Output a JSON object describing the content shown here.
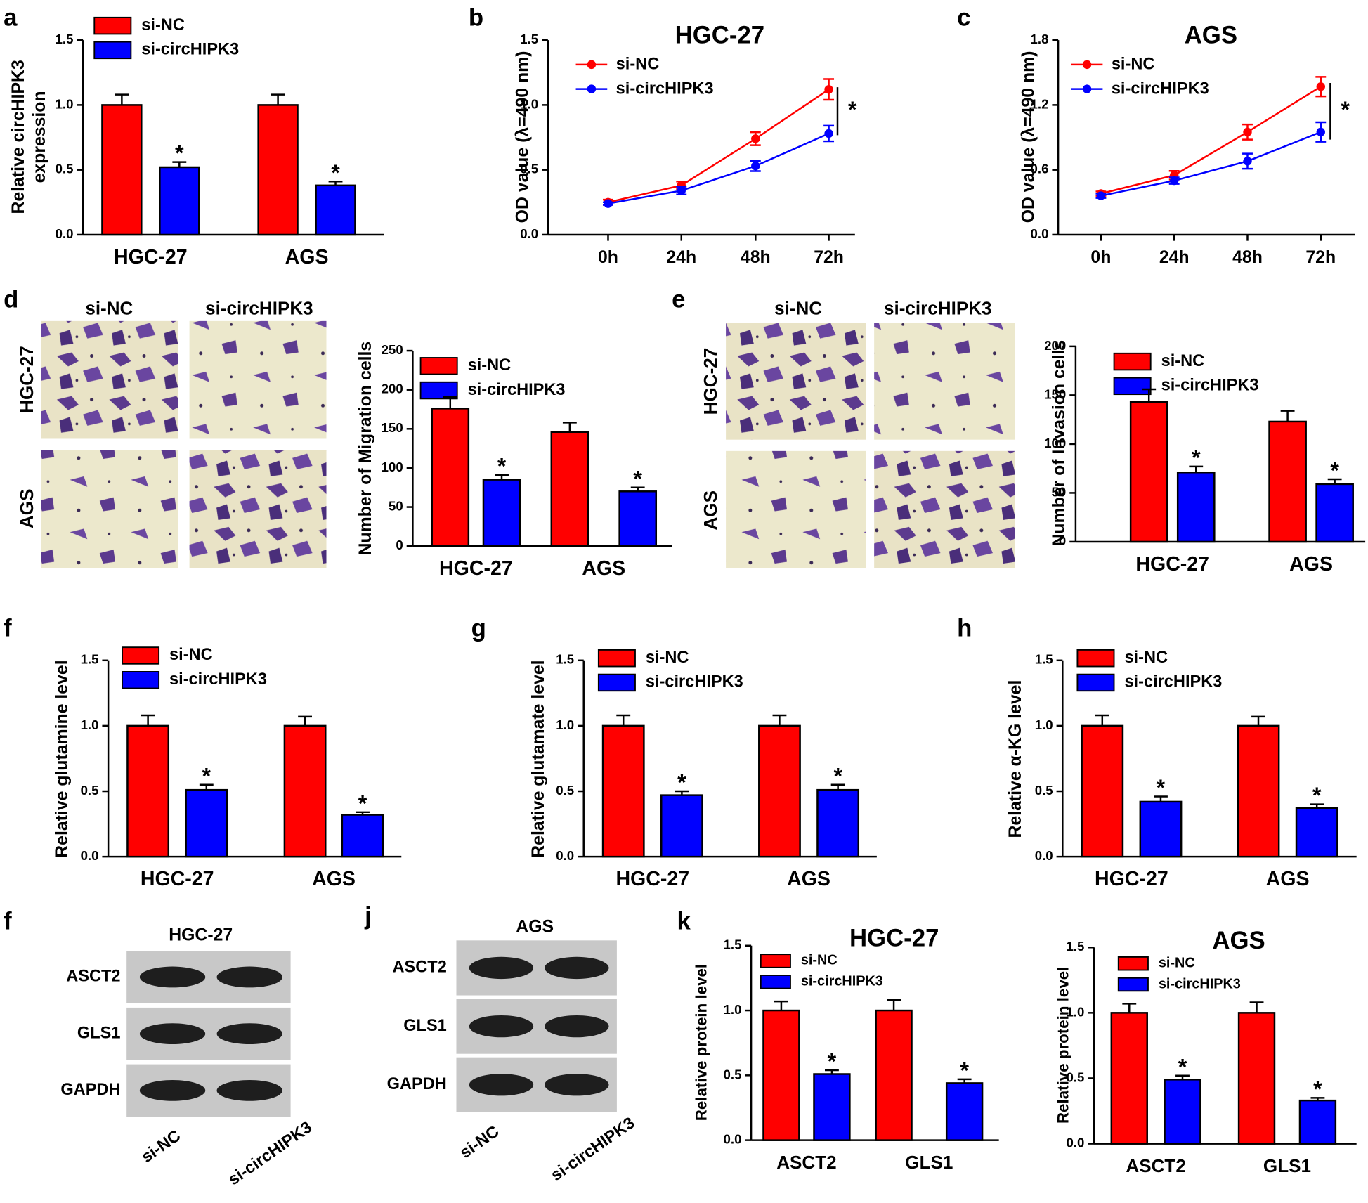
{
  "chart_data": [
    {
      "type": "bar",
      "letter": "a",
      "ylabel": [
        "Relative circHIPK3",
        "expression"
      ],
      "categories": [
        "HGC-27",
        "AGS"
      ],
      "series": [
        {
          "name": "si-NC",
          "color": "#ff0000",
          "values": [
            1.0,
            1.0
          ],
          "errors": [
            0.08,
            0.08
          ]
        },
        {
          "name": "si-circHIPK3",
          "color": "#0000ff",
          "values": [
            0.52,
            0.38
          ],
          "errors": [
            0.04,
            0.03
          ],
          "marks": [
            "*",
            "*"
          ]
        }
      ],
      "ylim": [
        0,
        1.5
      ],
      "yticks": [
        {
          "value": 0,
          "label": "0.0"
        },
        {
          "value": 0.5,
          "label": "0.5"
        },
        {
          "value": 1,
          "label": "1.0"
        },
        {
          "value": 1.5,
          "label": "1.5"
        }
      ]
    },
    {
      "type": "line",
      "letter": "b",
      "title": "HGC-27",
      "ylabel": [
        "OD value (λ=490 nm)"
      ],
      "categories": [
        "0h",
        "24h",
        "48h",
        "72h"
      ],
      "series": [
        {
          "name": "si-NC",
          "color": "#ff0000",
          "values": [
            0.25,
            0.38,
            0.74,
            1.12
          ],
          "errors": [
            0.02,
            0.03,
            0.05,
            0.08
          ]
        },
        {
          "name": "si-circHIPK3",
          "color": "#0000ff",
          "values": [
            0.24,
            0.34,
            0.53,
            0.78
          ],
          "errors": [
            0.01,
            0.03,
            0.04,
            0.06
          ]
        }
      ],
      "annotation": "*",
      "ylim": [
        0,
        1.5
      ],
      "yticks": [
        {
          "value": 0,
          "label": "0.0"
        },
        {
          "value": 0.5,
          "label": "0.5"
        },
        {
          "value": 1,
          "label": "1.0"
        },
        {
          "value": 1.5,
          "label": "1.5"
        }
      ]
    },
    {
      "type": "line",
      "letter": "c",
      "title": "AGS",
      "ylabel": [
        "OD value (λ=490 nm)"
      ],
      "categories": [
        "0h",
        "24h",
        "48h",
        "72h"
      ],
      "series": [
        {
          "name": "si-NC",
          "color": "#ff0000",
          "values": [
            0.38,
            0.55,
            0.95,
            1.37
          ],
          "errors": [
            0.02,
            0.04,
            0.07,
            0.09
          ]
        },
        {
          "name": "si-circHIPK3",
          "color": "#0000ff",
          "values": [
            0.36,
            0.5,
            0.68,
            0.95
          ],
          "errors": [
            0.02,
            0.03,
            0.07,
            0.09
          ]
        }
      ],
      "annotation": "*",
      "ylim": [
        0,
        1.8
      ],
      "yticks": [
        {
          "value": 0,
          "label": "0.0"
        },
        {
          "value": 0.6,
          "label": "0.6"
        },
        {
          "value": 1.2,
          "label": "1.2"
        },
        {
          "value": 1.8,
          "label": "1.8"
        }
      ]
    },
    {
      "type": "bar",
      "ylabel": [
        "Number of Migration cells"
      ],
      "categories": [
        "HGC-27",
        "AGS"
      ],
      "series": [
        {
          "name": "si-NC",
          "color": "#ff0000",
          "values": [
            176,
            146
          ],
          "errors": [
            15,
            12
          ]
        },
        {
          "name": "si-circHIPK3",
          "color": "#0000ff",
          "values": [
            85,
            70
          ],
          "errors": [
            6,
            5
          ],
          "marks": [
            "*",
            "*"
          ]
        }
      ],
      "ylim": [
        0,
        250
      ],
      "yticks": [
        0,
        50,
        100,
        150,
        200,
        250
      ]
    },
    {
      "type": "bar",
      "ylabel": [
        "Number of Invasion cells"
      ],
      "categories": [
        "HGC-27",
        "AGS"
      ],
      "series": [
        {
          "name": "si-NC",
          "color": "#ff0000",
          "values": [
            143,
            123
          ],
          "errors": [
            13,
            11
          ]
        },
        {
          "name": "si-circHIPK3",
          "color": "#0000ff",
          "values": [
            71,
            59
          ],
          "errors": [
            6,
            5
          ],
          "marks": [
            "*",
            "*"
          ]
        }
      ],
      "ylim": [
        0,
        200
      ],
      "yticks": [
        0,
        50,
        100,
        150,
        200
      ]
    },
    {
      "type": "bar",
      "letter": "f",
      "ylabel": [
        "Relative glutamine level"
      ],
      "categories": [
        "HGC-27",
        "AGS"
      ],
      "series": [
        {
          "name": "si-NC",
          "color": "#ff0000",
          "values": [
            1.0,
            1.0
          ],
          "errors": [
            0.08,
            0.07
          ]
        },
        {
          "name": "si-circHIPK3",
          "color": "#0000ff",
          "values": [
            0.51,
            0.32
          ],
          "errors": [
            0.04,
            0.02
          ],
          "marks": [
            "*",
            "*"
          ]
        }
      ],
      "ylim": [
        0,
        1.5
      ],
      "yticks": [
        {
          "value": 0,
          "label": "0.0"
        },
        {
          "value": 0.5,
          "label": "0.5"
        },
        {
          "value": 1,
          "label": "1.0"
        },
        {
          "value": 1.5,
          "label": "1.5"
        }
      ]
    },
    {
      "type": "bar",
      "letter": "g",
      "ylabel": [
        "Relative glutamate level"
      ],
      "categories": [
        "HGC-27",
        "AGS"
      ],
      "series": [
        {
          "name": "si-NC",
          "color": "#ff0000",
          "values": [
            1.0,
            1.0
          ],
          "errors": [
            0.08,
            0.08
          ]
        },
        {
          "name": "si-circHIPK3",
          "color": "#0000ff",
          "values": [
            0.47,
            0.51
          ],
          "errors": [
            0.03,
            0.04
          ],
          "marks": [
            "*",
            "*"
          ]
        }
      ],
      "ylim": [
        0,
        1.5
      ],
      "yticks": [
        {
          "value": 0,
          "label": "0.0"
        },
        {
          "value": 0.5,
          "label": "0.5"
        },
        {
          "value": 1,
          "label": "1.0"
        },
        {
          "value": 1.5,
          "label": "1.5"
        }
      ]
    },
    {
      "type": "bar",
      "letter": "h",
      "ylabel": [
        "Relative α-KG level"
      ],
      "categories": [
        "HGC-27",
        "AGS"
      ],
      "series": [
        {
          "name": "si-NC",
          "color": "#ff0000",
          "values": [
            1.0,
            1.0
          ],
          "errors": [
            0.08,
            0.07
          ]
        },
        {
          "name": "si-circHIPK3",
          "color": "#0000ff",
          "values": [
            0.42,
            0.37
          ],
          "errors": [
            0.04,
            0.03
          ],
          "marks": [
            "*",
            "*"
          ]
        }
      ],
      "ylim": [
        0,
        1.5
      ],
      "yticks": [
        {
          "value": 0,
          "label": "0.0"
        },
        {
          "value": 0.5,
          "label": "0.5"
        },
        {
          "value": 1,
          "label": "1.0"
        },
        {
          "value": 1.5,
          "label": "1.5"
        }
      ]
    },
    {
      "type": "bar",
      "letter": "k",
      "title": "HGC-27",
      "ylabel": [
        "Relative protein level"
      ],
      "categories": [
        "ASCT2",
        "GLS1"
      ],
      "series": [
        {
          "name": "si-NC",
          "color": "#ff0000",
          "values": [
            1.0,
            1.0
          ],
          "errors": [
            0.07,
            0.08
          ]
        },
        {
          "name": "si-circHIPK3",
          "color": "#0000ff",
          "values": [
            0.51,
            0.44
          ],
          "errors": [
            0.03,
            0.03
          ],
          "marks": [
            "*",
            "*"
          ]
        }
      ],
      "ylim": [
        0,
        1.5
      ],
      "yticks": [
        {
          "value": 0,
          "label": "0.0"
        },
        {
          "value": 0.5,
          "label": "0.5"
        },
        {
          "value": 1,
          "label": "1.0"
        },
        {
          "value": 1.5,
          "label": "1.5"
        }
      ]
    },
    {
      "type": "bar",
      "title": "AGS",
      "ylabel": [
        "Relative protein level"
      ],
      "categories": [
        "ASCT2",
        "GLS1"
      ],
      "series": [
        {
          "name": "si-NC",
          "color": "#ff0000",
          "values": [
            1.0,
            1.0
          ],
          "errors": [
            0.07,
            0.08
          ]
        },
        {
          "name": "si-circHIPK3",
          "color": "#0000ff",
          "values": [
            0.49,
            0.33
          ],
          "errors": [
            0.03,
            0.02
          ],
          "marks": [
            "*",
            "*"
          ]
        }
      ],
      "ylim": [
        0,
        1.5
      ],
      "yticks": [
        {
          "value": 0,
          "label": "0.0"
        },
        {
          "value": 0.5,
          "label": "0.5"
        },
        {
          "value": 1,
          "label": "1.0"
        },
        {
          "value": 1.5,
          "label": "1.5"
        }
      ]
    }
  ],
  "micrographs": [
    {
      "letter": "d",
      "columns": [
        "si-NC",
        "si-circHIPK3"
      ],
      "rows": [
        "HGC-27",
        "AGS"
      ]
    },
    {
      "letter": "e",
      "columns": [
        "si-NC",
        "si-circHIPK3"
      ],
      "rows": [
        "HGC-27",
        "AGS"
      ]
    }
  ],
  "blots": [
    {
      "letter": "f",
      "title": "HGC-27",
      "rows": [
        "ASCT2",
        "GLS1",
        "GAPDH"
      ],
      "lanes": [
        "si-NC",
        "si-circHIPK3"
      ]
    },
    {
      "letter": "j",
      "title": "AGS",
      "rows": [
        "ASCT2",
        "GLS1",
        "GAPDH"
      ],
      "lanes": [
        "si-NC",
        "si-circHIPK3"
      ]
    }
  ]
}
